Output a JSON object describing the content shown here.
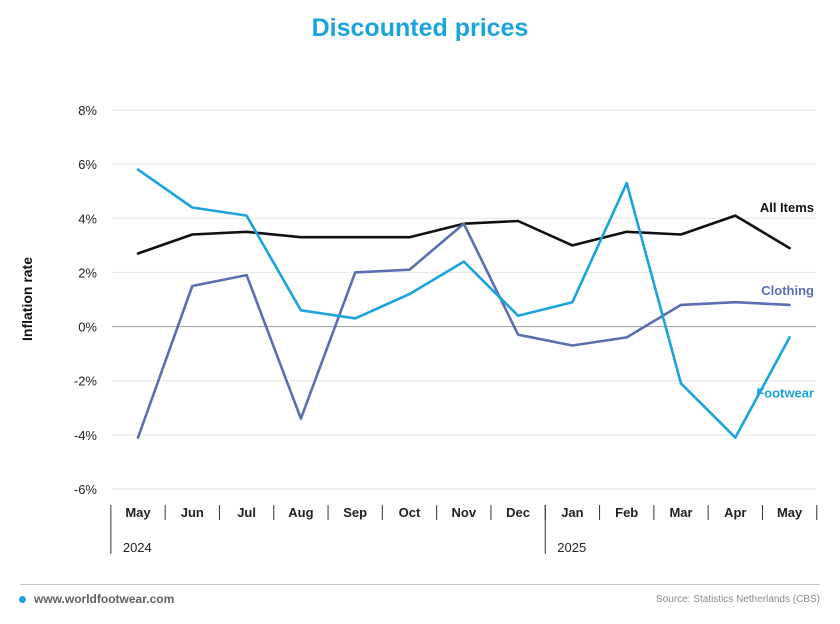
{
  "title": "Discounted prices",
  "footer": {
    "website": "www.worldfootwear.com",
    "source": "Source: Statistics Netherlands (CBS)"
  },
  "chart_data": {
    "type": "line",
    "title": "Discounted prices",
    "ylabel": "Inflation rate",
    "xlabel": "",
    "ylim": [
      -6,
      8
    ],
    "yticks": [
      -6,
      -4,
      -2,
      0,
      2,
      4,
      6,
      8
    ],
    "ytick_labels": [
      "-6%",
      "-4%",
      "-2%",
      "0%",
      "2%",
      "4%",
      "6%",
      "8%"
    ],
    "categories": [
      "May",
      "Jun",
      "Jul",
      "Aug",
      "Sep",
      "Oct",
      "Nov",
      "Dec",
      "Jan",
      "Feb",
      "Mar",
      "Apr",
      "May"
    ],
    "year_groups": [
      {
        "label": "2024",
        "start": 0,
        "end": 7
      },
      {
        "label": "2025",
        "start": 8,
        "end": 12
      }
    ],
    "grid": true,
    "legend": "labels at line ends",
    "series": [
      {
        "name": "All Items",
        "color": "#111111",
        "values": [
          2.7,
          3.4,
          3.5,
          3.3,
          3.3,
          3.3,
          3.8,
          3.9,
          3.0,
          3.5,
          3.4,
          4.1,
          2.9
        ]
      },
      {
        "name": "Clothing",
        "color": "#5b6fb0",
        "values": [
          -4.1,
          1.5,
          1.9,
          -3.4,
          2.0,
          2.1,
          3.8,
          -0.3,
          -0.7,
          -0.4,
          0.8,
          0.9,
          0.8
        ]
      },
      {
        "name": "Footwear",
        "color": "#1ba3dd",
        "values": [
          5.8,
          4.4,
          4.1,
          0.6,
          0.3,
          1.2,
          2.4,
          0.4,
          0.9,
          5.3,
          -2.1,
          -4.1,
          -0.4
        ]
      }
    ]
  }
}
